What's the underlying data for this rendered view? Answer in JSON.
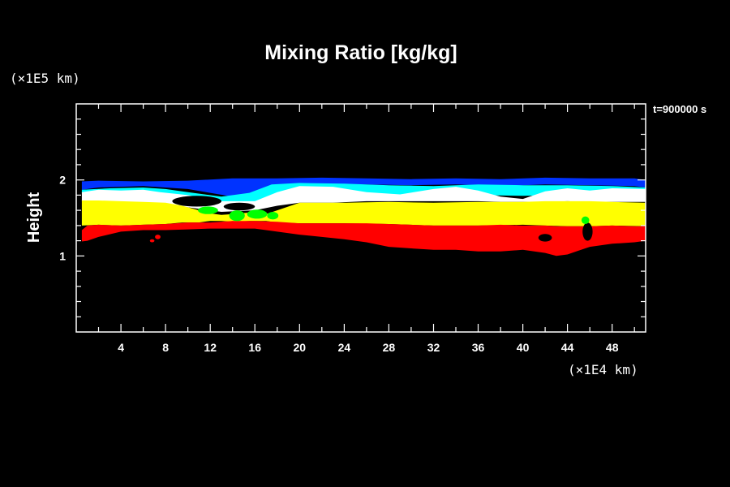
{
  "chart_data": {
    "type": "heatmap",
    "title": "Mixing Ratio [kg/kg]",
    "ylabel": "Height",
    "y_unit": "(×1E5 km)",
    "x_unit": "(×1E4 km)",
    "time_label": "t=900000 s",
    "xlim": [
      0,
      51
    ],
    "ylim": [
      0,
      3
    ],
    "x_ticks": [
      4,
      8,
      12,
      16,
      20,
      24,
      28,
      32,
      36,
      40,
      44,
      48
    ],
    "x_tick_labels": [
      "4",
      "8",
      "12",
      "16",
      "20",
      "24",
      "28",
      "32",
      "36",
      "40",
      "44",
      "48"
    ],
    "y_ticks": [
      1,
      2
    ],
    "y_tick_labels": [
      "1",
      "2"
    ],
    "colors": {
      "background": "#000000",
      "frame": "#ffffff",
      "red": "#ff0000",
      "yellow": "#ffff00",
      "green": "#00ff00",
      "white": "#ffffff",
      "cyan": "#00ffff",
      "blue": "#0033ff"
    },
    "bands": [
      {
        "name": "blue",
        "color": "blue",
        "x": [
          0.5,
          2,
          6,
          10,
          14,
          18,
          22,
          26,
          30,
          34,
          38,
          42,
          46,
          50,
          51
        ],
        "top": [
          1.98,
          1.99,
          1.98,
          1.99,
          2.02,
          2.02,
          2.03,
          2.02,
          2.01,
          2.02,
          2.01,
          2.03,
          2.02,
          2.02,
          2.0
        ],
        "bottom": [
          1.87,
          1.9,
          1.92,
          1.88,
          1.78,
          1.88,
          1.93,
          1.94,
          1.93,
          1.94,
          1.92,
          1.94,
          1.93,
          1.92,
          1.9
        ]
      },
      {
        "name": "cyan",
        "color": "cyan",
        "x": [
          0.5,
          3,
          6,
          8,
          10,
          13,
          15.5,
          17.5,
          20,
          24,
          28,
          32,
          36,
          40,
          44,
          48,
          51
        ],
        "top": [
          1.87,
          1.89,
          1.9,
          1.88,
          1.84,
          1.78,
          1.83,
          1.94,
          1.96,
          1.95,
          1.93,
          1.92,
          1.94,
          1.93,
          1.93,
          1.92,
          1.9
        ],
        "bottom": [
          1.83,
          1.84,
          1.84,
          1.8,
          1.76,
          1.68,
          1.68,
          1.72,
          1.76,
          1.78,
          1.79,
          1.8,
          1.8,
          1.79,
          1.8,
          1.8,
          1.79
        ]
      },
      {
        "name": "white",
        "color": "white",
        "x": [
          0.5,
          2,
          4,
          6,
          7.5,
          10,
          13,
          16,
          18,
          20,
          23,
          26,
          29,
          32,
          34,
          36,
          38,
          40,
          42,
          44,
          46,
          48,
          51
        ],
        "top": [
          1.84,
          1.87,
          1.86,
          1.87,
          1.84,
          1.8,
          1.72,
          1.72,
          1.84,
          1.92,
          1.91,
          1.84,
          1.81,
          1.88,
          1.91,
          1.86,
          1.78,
          1.75,
          1.85,
          1.89,
          1.86,
          1.89,
          1.88
        ],
        "bottom": [
          1.72,
          1.72,
          1.71,
          1.7,
          1.68,
          1.64,
          1.58,
          1.6,
          1.66,
          1.7,
          1.7,
          1.72,
          1.72,
          1.72,
          1.72,
          1.72,
          1.71,
          1.71,
          1.71,
          1.72,
          1.71,
          1.71,
          1.71
        ]
      },
      {
        "name": "yellow",
        "color": "yellow",
        "x": [
          0.5,
          2,
          4,
          6,
          8,
          9.5,
          11,
          12,
          13,
          14,
          15.5,
          17,
          18,
          20,
          24,
          28,
          32,
          36,
          40,
          42,
          44,
          46,
          48,
          51
        ],
        "top": [
          1.73,
          1.73,
          1.72,
          1.71,
          1.7,
          1.66,
          1.6,
          1.56,
          1.54,
          1.55,
          1.57,
          1.55,
          1.6,
          1.7,
          1.7,
          1.71,
          1.7,
          1.71,
          1.71,
          1.72,
          1.72,
          1.72,
          1.71,
          1.7
        ],
        "bottom": [
          1.4,
          1.41,
          1.4,
          1.41,
          1.42,
          1.44,
          1.44,
          1.46,
          1.46,
          1.45,
          1.46,
          1.46,
          1.44,
          1.43,
          1.43,
          1.42,
          1.4,
          1.4,
          1.41,
          1.4,
          1.39,
          1.39,
          1.4,
          1.39
        ]
      },
      {
        "name": "red",
        "color": "red",
        "x": [
          0.5,
          1,
          2,
          4,
          6,
          8,
          10,
          12,
          14,
          16,
          18,
          20,
          24,
          26,
          28,
          30,
          32,
          34,
          36,
          38,
          40,
          42,
          43,
          44,
          45,
          46,
          48,
          50,
          51
        ],
        "top": [
          1.34,
          1.4,
          1.41,
          1.4,
          1.41,
          1.42,
          1.44,
          1.44,
          1.46,
          1.46,
          1.45,
          1.43,
          1.43,
          1.43,
          1.42,
          1.41,
          1.4,
          1.4,
          1.4,
          1.41,
          1.4,
          1.4,
          1.39,
          1.39,
          1.39,
          1.39,
          1.4,
          1.39,
          1.39
        ],
        "bottom": [
          1.19,
          1.2,
          1.25,
          1.32,
          1.34,
          1.34,
          1.35,
          1.36,
          1.36,
          1.36,
          1.32,
          1.28,
          1.22,
          1.18,
          1.12,
          1.1,
          1.08,
          1.08,
          1.06,
          1.06,
          1.08,
          1.04,
          1.0,
          1.02,
          1.07,
          1.12,
          1.16,
          1.18,
          1.2
        ]
      }
    ],
    "green_blobs": [
      {
        "x": 11.8,
        "y": 1.6,
        "rx": 0.9,
        "ry": 0.05
      },
      {
        "x": 14.4,
        "y": 1.53,
        "rx": 0.7,
        "ry": 0.07
      },
      {
        "x": 16.2,
        "y": 1.55,
        "rx": 0.9,
        "ry": 0.06
      },
      {
        "x": 17.6,
        "y": 1.53,
        "rx": 0.5,
        "ry": 0.05
      },
      {
        "x": 45.6,
        "y": 1.47,
        "rx": 0.35,
        "ry": 0.05
      }
    ],
    "black_intrusions": [
      {
        "x": 10.8,
        "y": 1.72,
        "rx": 2.2,
        "ry": 0.07
      },
      {
        "x": 14.6,
        "y": 1.65,
        "rx": 1.4,
        "ry": 0.05
      },
      {
        "x": 45.8,
        "y": 1.32,
        "rx": 0.45,
        "ry": 0.12
      },
      {
        "x": 42.0,
        "y": 1.24,
        "rx": 0.6,
        "ry": 0.05
      }
    ],
    "red_specks": [
      {
        "x": 7.3,
        "y": 1.25,
        "rx": 0.25,
        "ry": 0.03
      },
      {
        "x": 6.8,
        "y": 1.2,
        "rx": 0.2,
        "ry": 0.02
      },
      {
        "x": 14.0,
        "y": 1.42,
        "rx": 0.4,
        "ry": 0.04
      }
    ]
  }
}
